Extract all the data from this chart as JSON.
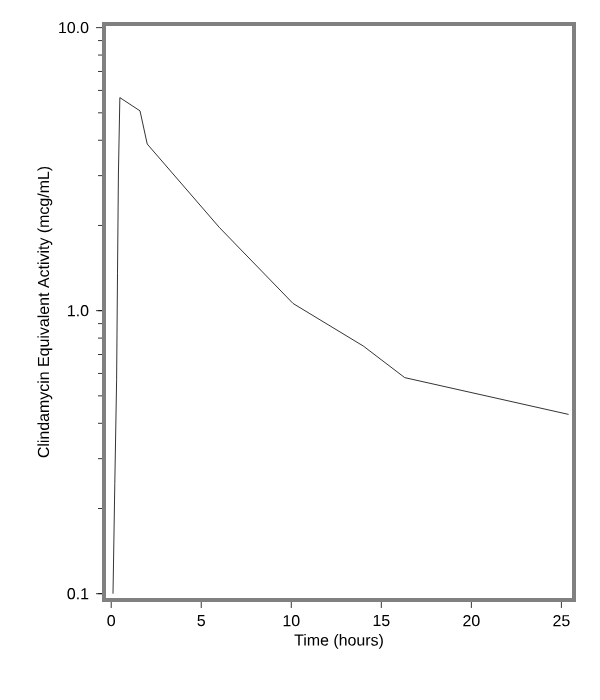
{
  "chart_data": {
    "type": "line",
    "xlabel": "Time (hours)",
    "ylabel": "Clindamycin Equivalent Activity (mcg/mL)",
    "log": "y",
    "color": "#000000",
    "x": [
      0.1,
      0.2,
      0.3,
      0.35,
      0.4,
      0.48,
      1.6,
      2.0,
      6.0,
      10.1,
      14.0,
      16.3,
      25.4
    ],
    "values": [
      0.1,
      0.245,
      0.57,
      1.35,
      3.04,
      5.66,
      5.08,
      3.88,
      1.97,
      1.06,
      0.75,
      0.58,
      0.43
    ],
    "xlim": [
      -0.4,
      25.7
    ],
    "ylim": [
      0.095,
      10.3
    ],
    "xticks": [
      0,
      5,
      10,
      15,
      20,
      25
    ],
    "yticks": [
      {
        "value": 0.1,
        "label": "0.1"
      },
      {
        "value": 1,
        "label": "1.0"
      },
      {
        "value": 10,
        "label": "10.0"
      }
    ],
    "grid": false,
    "marker": "none",
    "line_style": "solid"
  }
}
